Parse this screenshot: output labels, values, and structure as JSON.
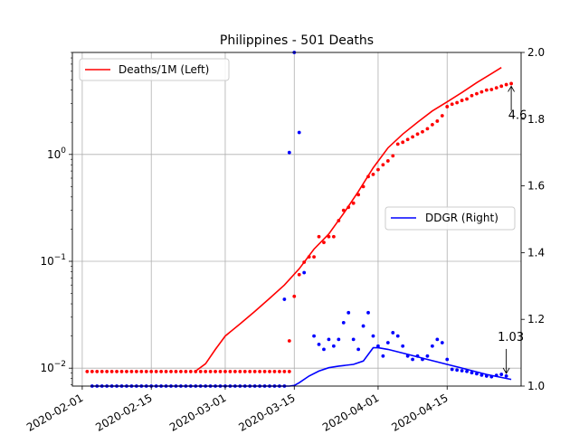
{
  "chart_data": {
    "type": "line",
    "title": "Philippines - 501 Deaths",
    "x_ticks": [
      "2020-02-01",
      "2020-02-15",
      "2020-03-01",
      "2020-03-15",
      "2020-04-01",
      "2020-04-15"
    ],
    "x_range": [
      "2020-01-30",
      "2020-04-30"
    ],
    "left_axis": {
      "scale": "log",
      "ylim": [
        0.0068,
        9.0
      ],
      "ticks": [
        {
          "value": 0.01,
          "base": "10",
          "exp": "−2"
        },
        {
          "value": 0.1,
          "base": "10",
          "exp": "−1"
        },
        {
          "value": 1,
          "base": "10",
          "exp": "0"
        }
      ]
    },
    "right_axis": {
      "scale": "linear",
      "ylim": [
        1.0,
        2.0
      ],
      "ticks": [
        "1.0",
        "1.2",
        "1.4",
        "1.6",
        "1.8",
        "2.0"
      ]
    },
    "grid": true,
    "series": [
      {
        "name": "Deaths/1M (Left)",
        "axis": "left",
        "color": "#ff0000",
        "legend_position": "upper left",
        "line": [
          [
            "2020-02-24",
            0.0094
          ],
          [
            "2020-02-26",
            0.011
          ],
          [
            "2020-02-28",
            0.015
          ],
          [
            "2020-03-01",
            0.02
          ],
          [
            "2020-03-04",
            0.026
          ],
          [
            "2020-03-07",
            0.034
          ],
          [
            "2020-03-10",
            0.045
          ],
          [
            "2020-03-13",
            0.06
          ],
          [
            "2020-03-16",
            0.085
          ],
          [
            "2020-03-19",
            0.13
          ],
          [
            "2020-03-22",
            0.18
          ],
          [
            "2020-03-25",
            0.28
          ],
          [
            "2020-03-28",
            0.45
          ],
          [
            "2020-03-31",
            0.75
          ],
          [
            "2020-04-03",
            1.15
          ],
          [
            "2020-04-06",
            1.55
          ],
          [
            "2020-04-09",
            2.0
          ],
          [
            "2020-04-12",
            2.55
          ],
          [
            "2020-04-15",
            3.1
          ],
          [
            "2020-04-18",
            3.8
          ],
          [
            "2020-04-21",
            4.7
          ],
          [
            "2020-04-24",
            5.7
          ],
          [
            "2020-04-26",
            6.5
          ]
        ],
        "points_flat": {
          "from": "2020-02-02",
          "to": "2020-03-14",
          "value": 0.0093
        },
        "points": [
          [
            "2020-03-14",
            0.018
          ],
          [
            "2020-03-15",
            0.047
          ],
          [
            "2020-03-16",
            0.075
          ],
          [
            "2020-03-17",
            0.098
          ],
          [
            "2020-03-18",
            0.11
          ],
          [
            "2020-03-19",
            0.11
          ],
          [
            "2020-03-20",
            0.17
          ],
          [
            "2020-03-21",
            0.15
          ],
          [
            "2020-03-22",
            0.17
          ],
          [
            "2020-03-23",
            0.17
          ],
          [
            "2020-03-24",
            0.24
          ],
          [
            "2020-03-25",
            0.3
          ],
          [
            "2020-03-26",
            0.32
          ],
          [
            "2020-03-27",
            0.35
          ],
          [
            "2020-03-28",
            0.42
          ],
          [
            "2020-03-29",
            0.5
          ],
          [
            "2020-03-30",
            0.62
          ],
          [
            "2020-03-31",
            0.65
          ],
          [
            "2020-04-01",
            0.72
          ],
          [
            "2020-04-02",
            0.8
          ],
          [
            "2020-04-03",
            0.87
          ],
          [
            "2020-04-04",
            0.97
          ],
          [
            "2020-04-05",
            1.25
          ],
          [
            "2020-04-06",
            1.3
          ],
          [
            "2020-04-07",
            1.38
          ],
          [
            "2020-04-08",
            1.46
          ],
          [
            "2020-04-09",
            1.55
          ],
          [
            "2020-04-10",
            1.63
          ],
          [
            "2020-04-11",
            1.74
          ],
          [
            "2020-04-12",
            1.9
          ],
          [
            "2020-04-13",
            2.05
          ],
          [
            "2020-04-14",
            2.3
          ],
          [
            "2020-04-15",
            2.8
          ],
          [
            "2020-04-16",
            2.95
          ],
          [
            "2020-04-17",
            3.05
          ],
          [
            "2020-04-18",
            3.2
          ],
          [
            "2020-04-19",
            3.3
          ],
          [
            "2020-04-20",
            3.55
          ],
          [
            "2020-04-21",
            3.7
          ],
          [
            "2020-04-22",
            3.85
          ],
          [
            "2020-04-23",
            4.0
          ],
          [
            "2020-04-24",
            4.05
          ],
          [
            "2020-04-25",
            4.2
          ],
          [
            "2020-04-26",
            4.35
          ],
          [
            "2020-04-27",
            4.5
          ],
          [
            "2020-04-28",
            4.6
          ]
        ],
        "last_value_label": "4.6"
      },
      {
        "name": "DDGR (Right)",
        "axis": "right",
        "color": "#0000ff",
        "legend_position": "center right",
        "line": [
          [
            "2020-02-03",
            1.0
          ],
          [
            "2020-03-14",
            1.0
          ],
          [
            "2020-03-15",
            1.002
          ],
          [
            "2020-03-16",
            1.01
          ],
          [
            "2020-03-18",
            1.03
          ],
          [
            "2020-03-20",
            1.045
          ],
          [
            "2020-03-22",
            1.055
          ],
          [
            "2020-03-24",
            1.06
          ],
          [
            "2020-03-27",
            1.065
          ],
          [
            "2020-03-29",
            1.075
          ],
          [
            "2020-03-31",
            1.115
          ],
          [
            "2020-04-01",
            1.115
          ],
          [
            "2020-04-03",
            1.11
          ],
          [
            "2020-04-07",
            1.095
          ],
          [
            "2020-04-11",
            1.08
          ],
          [
            "2020-04-15",
            1.065
          ],
          [
            "2020-04-19",
            1.05
          ],
          [
            "2020-04-23",
            1.035
          ],
          [
            "2020-04-28",
            1.02
          ]
        ],
        "points_flat": {
          "from": "2020-02-03",
          "to": "2020-03-13",
          "value": 1.0
        },
        "points": [
          [
            "2020-03-13",
            1.26
          ],
          [
            "2020-03-14",
            1.7
          ],
          [
            "2020-03-15",
            2.0
          ],
          [
            "2020-03-16",
            1.76
          ],
          [
            "2020-03-17",
            1.34
          ],
          [
            "2020-03-19",
            1.15
          ],
          [
            "2020-03-20",
            1.125
          ],
          [
            "2020-03-21",
            1.11
          ],
          [
            "2020-03-22",
            1.14
          ],
          [
            "2020-03-23",
            1.12
          ],
          [
            "2020-03-24",
            1.14
          ],
          [
            "2020-03-25",
            1.19
          ],
          [
            "2020-03-26",
            1.22
          ],
          [
            "2020-03-27",
            1.14
          ],
          [
            "2020-03-28",
            1.11
          ],
          [
            "2020-03-29",
            1.18
          ],
          [
            "2020-03-30",
            1.22
          ],
          [
            "2020-03-31",
            1.15
          ],
          [
            "2020-04-01",
            1.12
          ],
          [
            "2020-04-02",
            1.09
          ],
          [
            "2020-04-03",
            1.13
          ],
          [
            "2020-04-04",
            1.16
          ],
          [
            "2020-04-05",
            1.15
          ],
          [
            "2020-04-06",
            1.12
          ],
          [
            "2020-04-07",
            1.09
          ],
          [
            "2020-04-08",
            1.08
          ],
          [
            "2020-04-09",
            1.09
          ],
          [
            "2020-04-10",
            1.08
          ],
          [
            "2020-04-11",
            1.09
          ],
          [
            "2020-04-12",
            1.12
          ],
          [
            "2020-04-13",
            1.14
          ],
          [
            "2020-04-14",
            1.13
          ],
          [
            "2020-04-15",
            1.08
          ],
          [
            "2020-04-16",
            1.05
          ],
          [
            "2020-04-17",
            1.048
          ],
          [
            "2020-04-18",
            1.046
          ],
          [
            "2020-04-19",
            1.044
          ],
          [
            "2020-04-20",
            1.04
          ],
          [
            "2020-04-21",
            1.037
          ],
          [
            "2020-04-22",
            1.033
          ],
          [
            "2020-04-23",
            1.03
          ],
          [
            "2020-04-24",
            1.028
          ],
          [
            "2020-04-25",
            1.032
          ],
          [
            "2020-04-26",
            1.035
          ],
          [
            "2020-04-27",
            1.03
          ]
        ],
        "last_value_label": "1.03"
      }
    ]
  }
}
